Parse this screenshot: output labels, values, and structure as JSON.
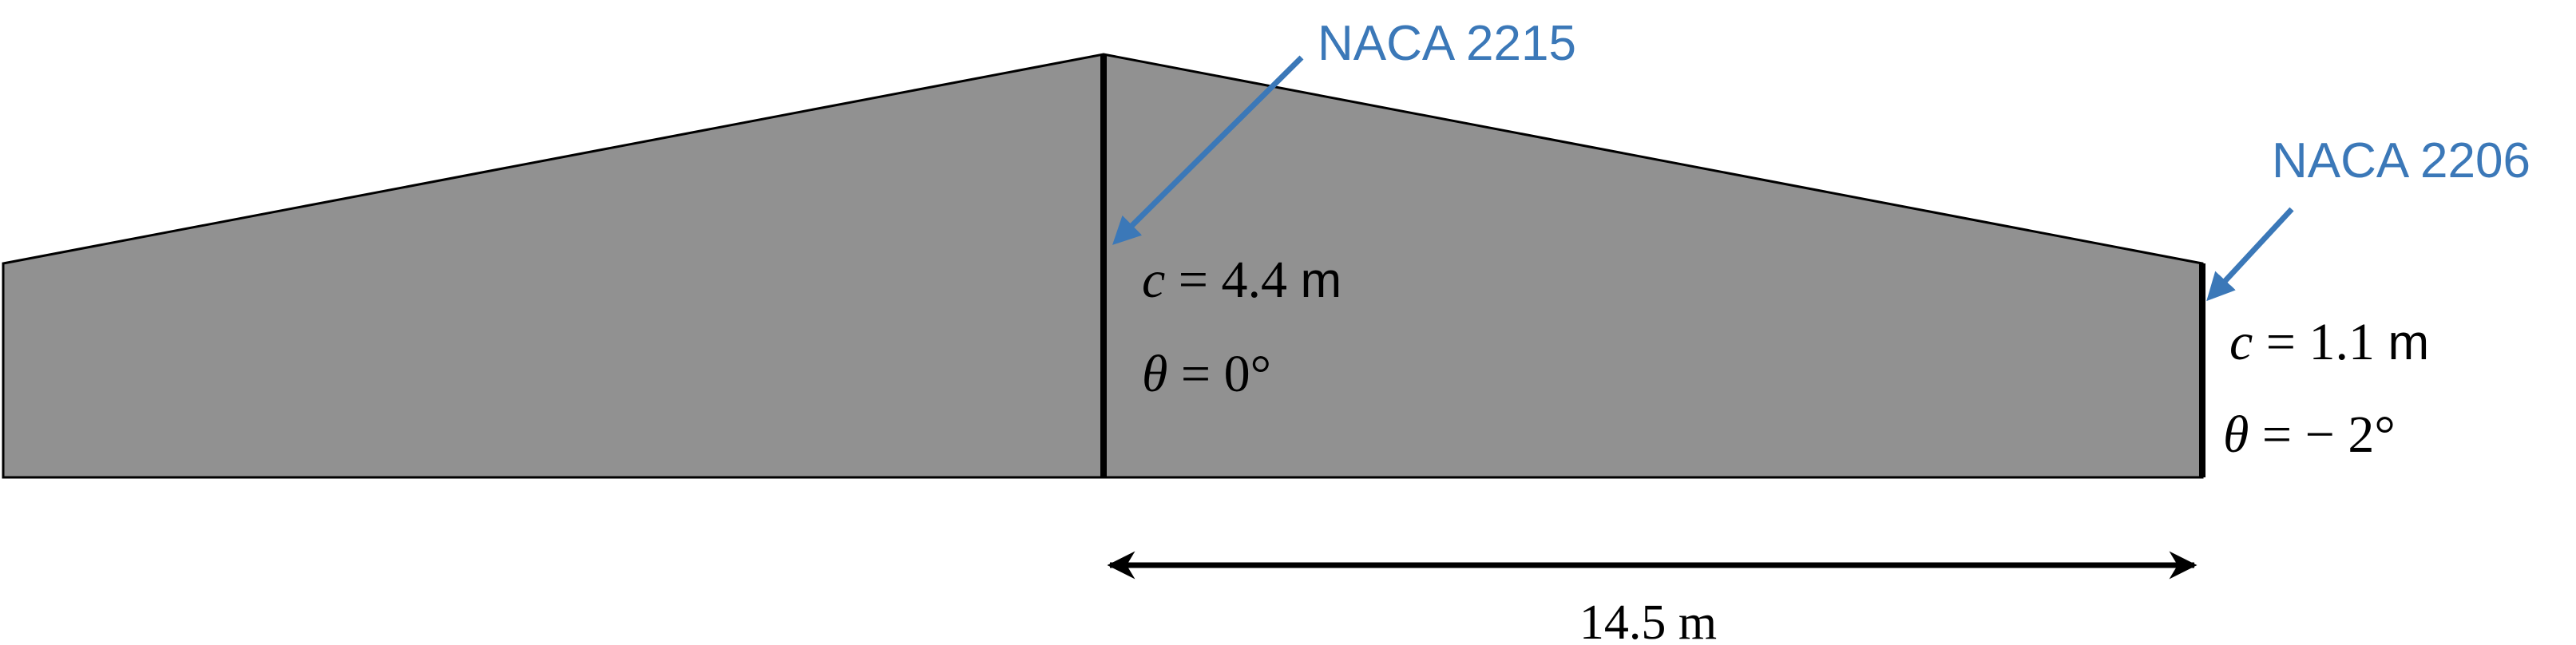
{
  "colors": {
    "wing_fill": "#919191",
    "outline": "#000000",
    "annotation": "#3b78b8"
  },
  "root": {
    "airfoil": "NACA 2215",
    "chord_symbol": "c",
    "chord_equals": " = 4.4 ",
    "chord_unit": "m",
    "twist_symbol": "θ",
    "twist_value": " = 0°"
  },
  "tip": {
    "airfoil": "NACA 2206",
    "chord_symbol": "c",
    "chord_equals": " = 1.1 ",
    "chord_unit": "m",
    "twist_symbol": "θ",
    "twist_value": " = − 2°"
  },
  "span": {
    "label": "14.5 m"
  }
}
